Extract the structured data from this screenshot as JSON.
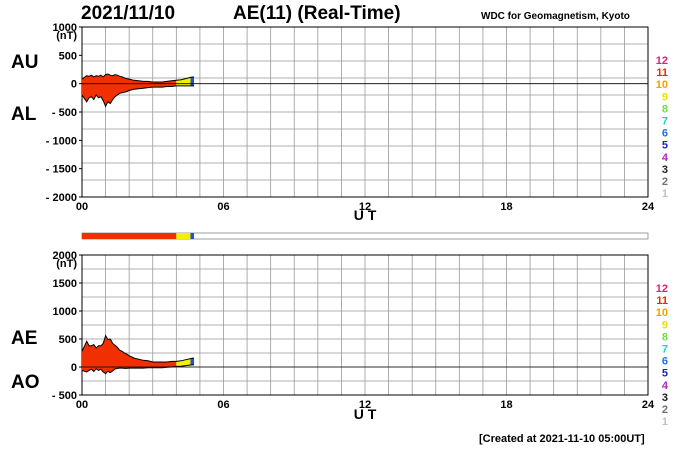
{
  "header": {
    "date": "2021/11/10",
    "title": "AE(11) (Real-Time)",
    "source": "WDC for Geomagnetism, Kyoto"
  },
  "footer": {
    "created": "[Created at 2021-11-10 05:00UT]"
  },
  "hour_legend": {
    "labels": [
      "12",
      "11",
      "10",
      "9",
      "8",
      "7",
      "6",
      "5",
      "4",
      "3",
      "2",
      "1"
    ],
    "colors": [
      "#e0207a",
      "#e03000",
      "#f0a000",
      "#e8e000",
      "#70e040",
      "#20d0d0",
      "#2070e0",
      "#2020c0",
      "#c020c0",
      "#202020",
      "#707070",
      "#c0c0c0"
    ]
  },
  "chart_data": [
    {
      "type": "area",
      "name": "AU/AL",
      "left_labels": [
        "AU",
        "AL"
      ],
      "y_unit": "(nT)",
      "ylim": [
        -2000,
        1000
      ],
      "yticks": [
        1000,
        500,
        0,
        -500,
        -1000,
        -1500,
        -2000
      ],
      "ytick_labels": [
        "1000",
        "500",
        "0",
        "- 500",
        "- 1000",
        "- 1500",
        "- 2000"
      ],
      "xlim": [
        0,
        24
      ],
      "xticks": [
        0,
        6,
        12,
        18,
        24
      ],
      "xtick_labels": [
        "00",
        "06",
        "12",
        "18",
        "24"
      ],
      "xlabel": "U T",
      "grid": true,
      "series": [
        {
          "name": "AU",
          "color": "#000000",
          "x": [
            0.0,
            0.1,
            0.2,
            0.3,
            0.4,
            0.5,
            0.6,
            0.7,
            0.8,
            0.9,
            1.0,
            1.1,
            1.2,
            1.3,
            1.4,
            1.5,
            1.6,
            1.7,
            1.8,
            1.9,
            2.0,
            2.2,
            2.4,
            2.6,
            2.8,
            3.0,
            3.2,
            3.4,
            3.6,
            3.8,
            4.0,
            4.2,
            4.4,
            4.6,
            4.75
          ],
          "values": [
            80,
            110,
            140,
            130,
            150,
            120,
            140,
            130,
            150,
            120,
            160,
            170,
            150,
            140,
            160,
            150,
            130,
            120,
            100,
            90,
            80,
            60,
            50,
            40,
            40,
            30,
            30,
            30,
            40,
            50,
            60,
            70,
            90,
            110,
            120
          ]
        },
        {
          "name": "AL",
          "color": "#000000",
          "x": [
            0.0,
            0.1,
            0.2,
            0.3,
            0.4,
            0.5,
            0.6,
            0.7,
            0.8,
            0.9,
            1.0,
            1.1,
            1.2,
            1.3,
            1.4,
            1.5,
            1.6,
            1.7,
            1.8,
            1.9,
            2.0,
            2.2,
            2.4,
            2.6,
            2.8,
            3.0,
            3.2,
            3.4,
            3.6,
            3.8,
            4.0,
            4.2,
            4.4,
            4.6,
            4.75
          ],
          "values": [
            -200,
            -260,
            -320,
            -250,
            -230,
            -280,
            -200,
            -250,
            -230,
            -300,
            -400,
            -320,
            -350,
            -280,
            -230,
            -200,
            -170,
            -160,
            -150,
            -140,
            -120,
            -100,
            -90,
            -80,
            -70,
            -60,
            -60,
            -60,
            -50,
            -50,
            -40,
            -40,
            -40,
            -40,
            -40
          ]
        }
      ]
    },
    {
      "type": "area",
      "name": "AE/AO",
      "left_labels": [
        "AE",
        "AO"
      ],
      "y_unit": "(nT)",
      "ylim": [
        -500,
        2000
      ],
      "yticks": [
        2000,
        1500,
        1000,
        500,
        0,
        -500
      ],
      "ytick_labels": [
        "2000",
        "1500",
        "1000",
        "500",
        "0",
        "- 500"
      ],
      "xlim": [
        0,
        24
      ],
      "xticks": [
        0,
        6,
        12,
        18,
        24
      ],
      "xtick_labels": [
        "00",
        "06",
        "12",
        "18",
        "24"
      ],
      "xlabel": "U T",
      "grid": true,
      "series": [
        {
          "name": "AE",
          "color": "#000000",
          "x": [
            0.0,
            0.1,
            0.2,
            0.3,
            0.4,
            0.5,
            0.6,
            0.7,
            0.8,
            0.9,
            1.0,
            1.1,
            1.2,
            1.3,
            1.4,
            1.5,
            1.6,
            1.7,
            1.8,
            1.9,
            2.0,
            2.2,
            2.4,
            2.6,
            2.8,
            3.0,
            3.2,
            3.4,
            3.6,
            3.8,
            4.0,
            4.2,
            4.4,
            4.6,
            4.75
          ],
          "values": [
            280,
            370,
            460,
            380,
            380,
            400,
            340,
            380,
            380,
            420,
            560,
            490,
            500,
            420,
            390,
            350,
            300,
            280,
            250,
            230,
            200,
            160,
            140,
            120,
            110,
            90,
            90,
            90,
            90,
            100,
            100,
            110,
            130,
            150,
            160
          ]
        },
        {
          "name": "AO",
          "color": "#000000",
          "x": [
            0.0,
            0.1,
            0.2,
            0.3,
            0.4,
            0.5,
            0.6,
            0.7,
            0.8,
            0.9,
            1.0,
            1.1,
            1.2,
            1.3,
            1.4,
            1.5,
            1.6,
            1.7,
            1.8,
            1.9,
            2.0,
            2.2,
            2.4,
            2.6,
            2.8,
            3.0,
            3.2,
            3.4,
            3.6,
            3.8,
            4.0,
            4.2,
            4.4,
            4.6,
            4.75
          ],
          "values": [
            -60,
            -75,
            -90,
            -60,
            -40,
            -80,
            -30,
            -60,
            -40,
            -90,
            -120,
            -75,
            -100,
            -70,
            -35,
            -25,
            -20,
            -20,
            -25,
            -25,
            -20,
            -20,
            -20,
            -20,
            -15,
            -15,
            -15,
            -15,
            -5,
            0,
            10,
            15,
            25,
            35,
            40
          ]
        }
      ]
    }
  ],
  "status_bar": {
    "segments": [
      {
        "from": 0,
        "to": 4.0,
        "color": "#f03000"
      },
      {
        "from": 4.0,
        "to": 4.6,
        "color": "#f0f000"
      },
      {
        "from": 4.6,
        "to": 4.75,
        "color": "#2050e0"
      }
    ]
  },
  "fill_colors": {
    "hours": [
      {
        "from": 0,
        "to": 4.0,
        "color": "#f03000"
      },
      {
        "from": 4.0,
        "to": 4.6,
        "color": "#f0f000"
      },
      {
        "from": 4.6,
        "to": 4.75,
        "color": "#2050e0"
      }
    ]
  }
}
